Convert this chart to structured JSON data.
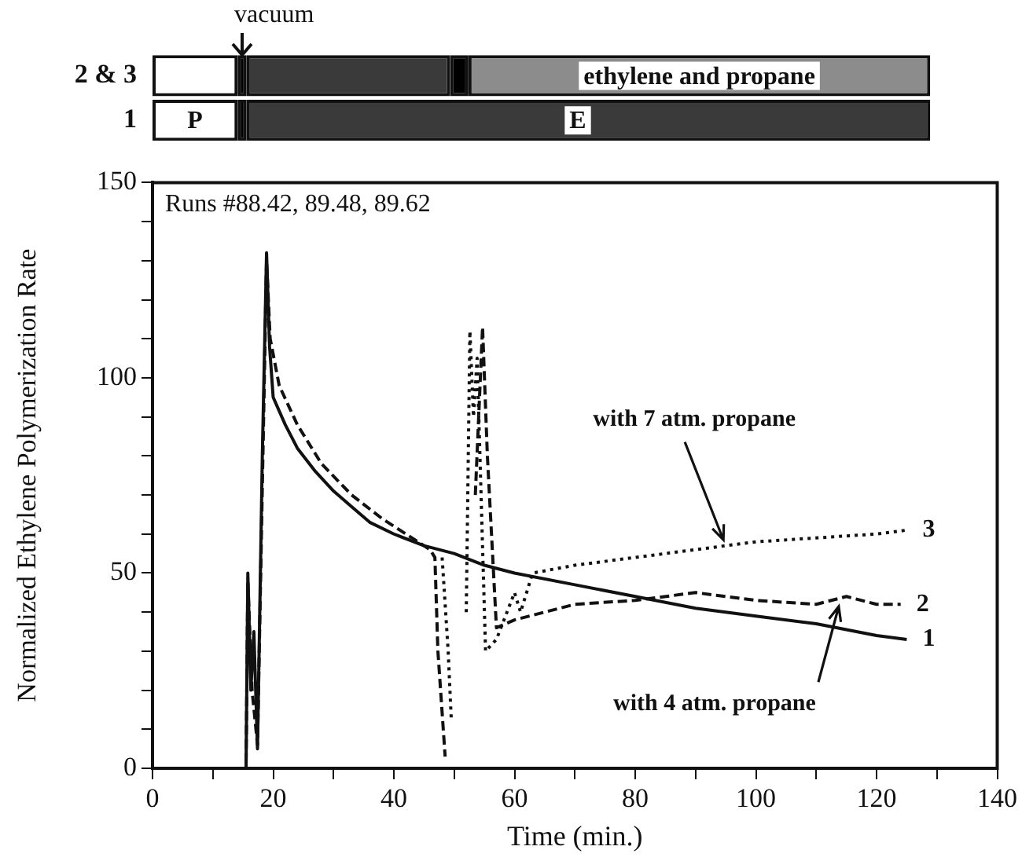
{
  "chart_data": [
    {
      "type": "bar",
      "orientation": "horizontal",
      "categories": [
        "2 & 3",
        "1"
      ],
      "xlim": [
        0,
        140
      ],
      "tick_labels": "y",
      "grid": false,
      "legend": false,
      "annotations": [
        "vacuum",
        {
          "text": "ethylene and propane",
          "x": 90,
          "y": "2 & 3"
        },
        {
          "text": "P",
          "x": 7,
          "y": "1"
        },
        {
          "text": "E",
          "x": 70,
          "y": "1"
        }
      ],
      "series": [
        {
          "color": "#ffffff",
          "values": [
            14,
            14
          ],
          "base": [
            0,
            0
          ]
        },
        {
          "color": "#000000",
          "values": [
            1.5,
            1.5
          ],
          "base": [
            14,
            14
          ]
        },
        {
          "color": "#3a3a3a",
          "values": [
            33.5,
            112.5
          ],
          "base": [
            15.5,
            15.5
          ]
        },
        {
          "color": "#000000",
          "values": [
            3,
            null
          ],
          "base": [
            49,
            null
          ]
        },
        {
          "color": "#8c8c8c",
          "values": [
            76,
            null
          ],
          "base": [
            52,
            null
          ]
        }
      ]
    },
    {
      "type": "line",
      "xlabel": "Time (min.)",
      "ylabel": "Normalized Ethylene Polymerization Rate",
      "xlim": [
        0,
        140
      ],
      "ylim": [
        0,
        150
      ],
      "xticks": [
        0,
        {
          "value": 10,
          "label": null
        },
        20,
        {
          "value": 30,
          "label": null
        },
        40,
        {
          "value": 50,
          "label": null
        },
        60,
        {
          "value": 70,
          "label": null
        },
        80,
        {
          "value": 90,
          "label": null
        },
        100,
        {
          "value": 110,
          "label": null
        },
        120,
        {
          "value": 130,
          "label": null
        },
        140
      ],
      "yticks": [
        0,
        {
          "value": 10,
          "label": null
        },
        {
          "value": 20,
          "label": null
        },
        {
          "value": 30,
          "label": null
        },
        {
          "value": 40,
          "label": null
        },
        50,
        {
          "value": 60,
          "label": null
        },
        {
          "value": 70,
          "label": null
        },
        {
          "value": 80,
          "label": null
        },
        {
          "value": 90,
          "label": null
        },
        100,
        {
          "value": 110,
          "label": null
        },
        {
          "value": 120,
          "label": null
        },
        {
          "value": 130,
          "label": null
        },
        {
          "value": 140,
          "label": null
        },
        150
      ],
      "grid": false,
      "legend": false,
      "marker": "none",
      "annotations": [
        "Runs #88.42, 89.48, 89.62",
        {
          "text": "with 7 atm. propane",
          "x": 95,
          "y": 57
        },
        {
          "text": "with 4 atm. propane",
          "x": 114,
          "y": 43
        }
      ],
      "series": [
        {
          "name": "1",
          "color": "#111111",
          "line_style": "solid",
          "x": [
            0,
            15.5,
            15.8,
            16.3,
            16.8,
            17.4,
            18.2,
            18.9,
            19.4,
            20,
            22,
            24,
            27,
            30,
            33,
            36,
            40,
            45,
            50,
            55,
            60,
            70,
            80,
            90,
            100,
            110,
            120,
            125
          ],
          "values": [
            0,
            0,
            50,
            20,
            35,
            5,
            80,
            132,
            108,
            95,
            88,
            82,
            76,
            71,
            67,
            63,
            60,
            57,
            55,
            52,
            50,
            47,
            44,
            41,
            39,
            37,
            34,
            33
          ]
        },
        {
          "name": "2",
          "color": "#111111",
          "line_style": "dashed",
          "x": [
            0,
            15.5,
            15.8,
            16.5,
            17.4,
            18.9,
            19.5,
            21,
            24,
            28,
            33,
            38,
            42,
            46,
            46.8,
            47.3,
            48.5,
            51,
            53.5,
            54.7,
            55.5,
            57,
            60,
            65,
            70,
            80,
            90,
            100,
            110,
            115,
            120,
            124
          ],
          "values": [
            0,
            0,
            48,
            20,
            6,
            130,
            110,
            98,
            88,
            78,
            70,
            64,
            60,
            56,
            54,
            30,
            3,
            null,
            70,
            113,
            80,
            36,
            38,
            40,
            42,
            43,
            45,
            43,
            42,
            44,
            42,
            42
          ]
        },
        {
          "name": "3",
          "color": "#111111",
          "line_style": "dotted",
          "x": [
            48,
            49,
            49.5,
            51,
            52,
            52.6,
            53.2,
            53.8,
            55.2,
            57,
            60,
            61,
            63,
            70,
            80,
            90,
            95,
            100,
            110,
            120,
            125
          ],
          "values": [
            54,
            30,
            13,
            null,
            40,
            112,
            90,
            105,
            30,
            33,
            45,
            40,
            50,
            52,
            54,
            56,
            57,
            58,
            59,
            60,
            61
          ]
        }
      ]
    }
  ]
}
